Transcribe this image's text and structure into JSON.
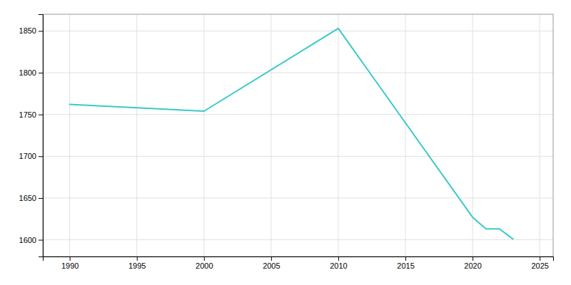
{
  "chart_data": {
    "type": "line",
    "x": [
      1990,
      2000,
      2010,
      2020,
      2021,
      2022,
      2023
    ],
    "values": [
      1762,
      1754,
      1853,
      1627,
      1613,
      1613,
      1601
    ],
    "color": "#3ac9c9",
    "xlim": [
      1988,
      2026
    ],
    "ylim": [
      1580,
      1870
    ],
    "xticks": [
      1990,
      1995,
      2000,
      2005,
      2010,
      2015,
      2020,
      2025
    ],
    "yticks": [
      1600,
      1650,
      1700,
      1750,
      1800,
      1850
    ],
    "grid": true
  }
}
